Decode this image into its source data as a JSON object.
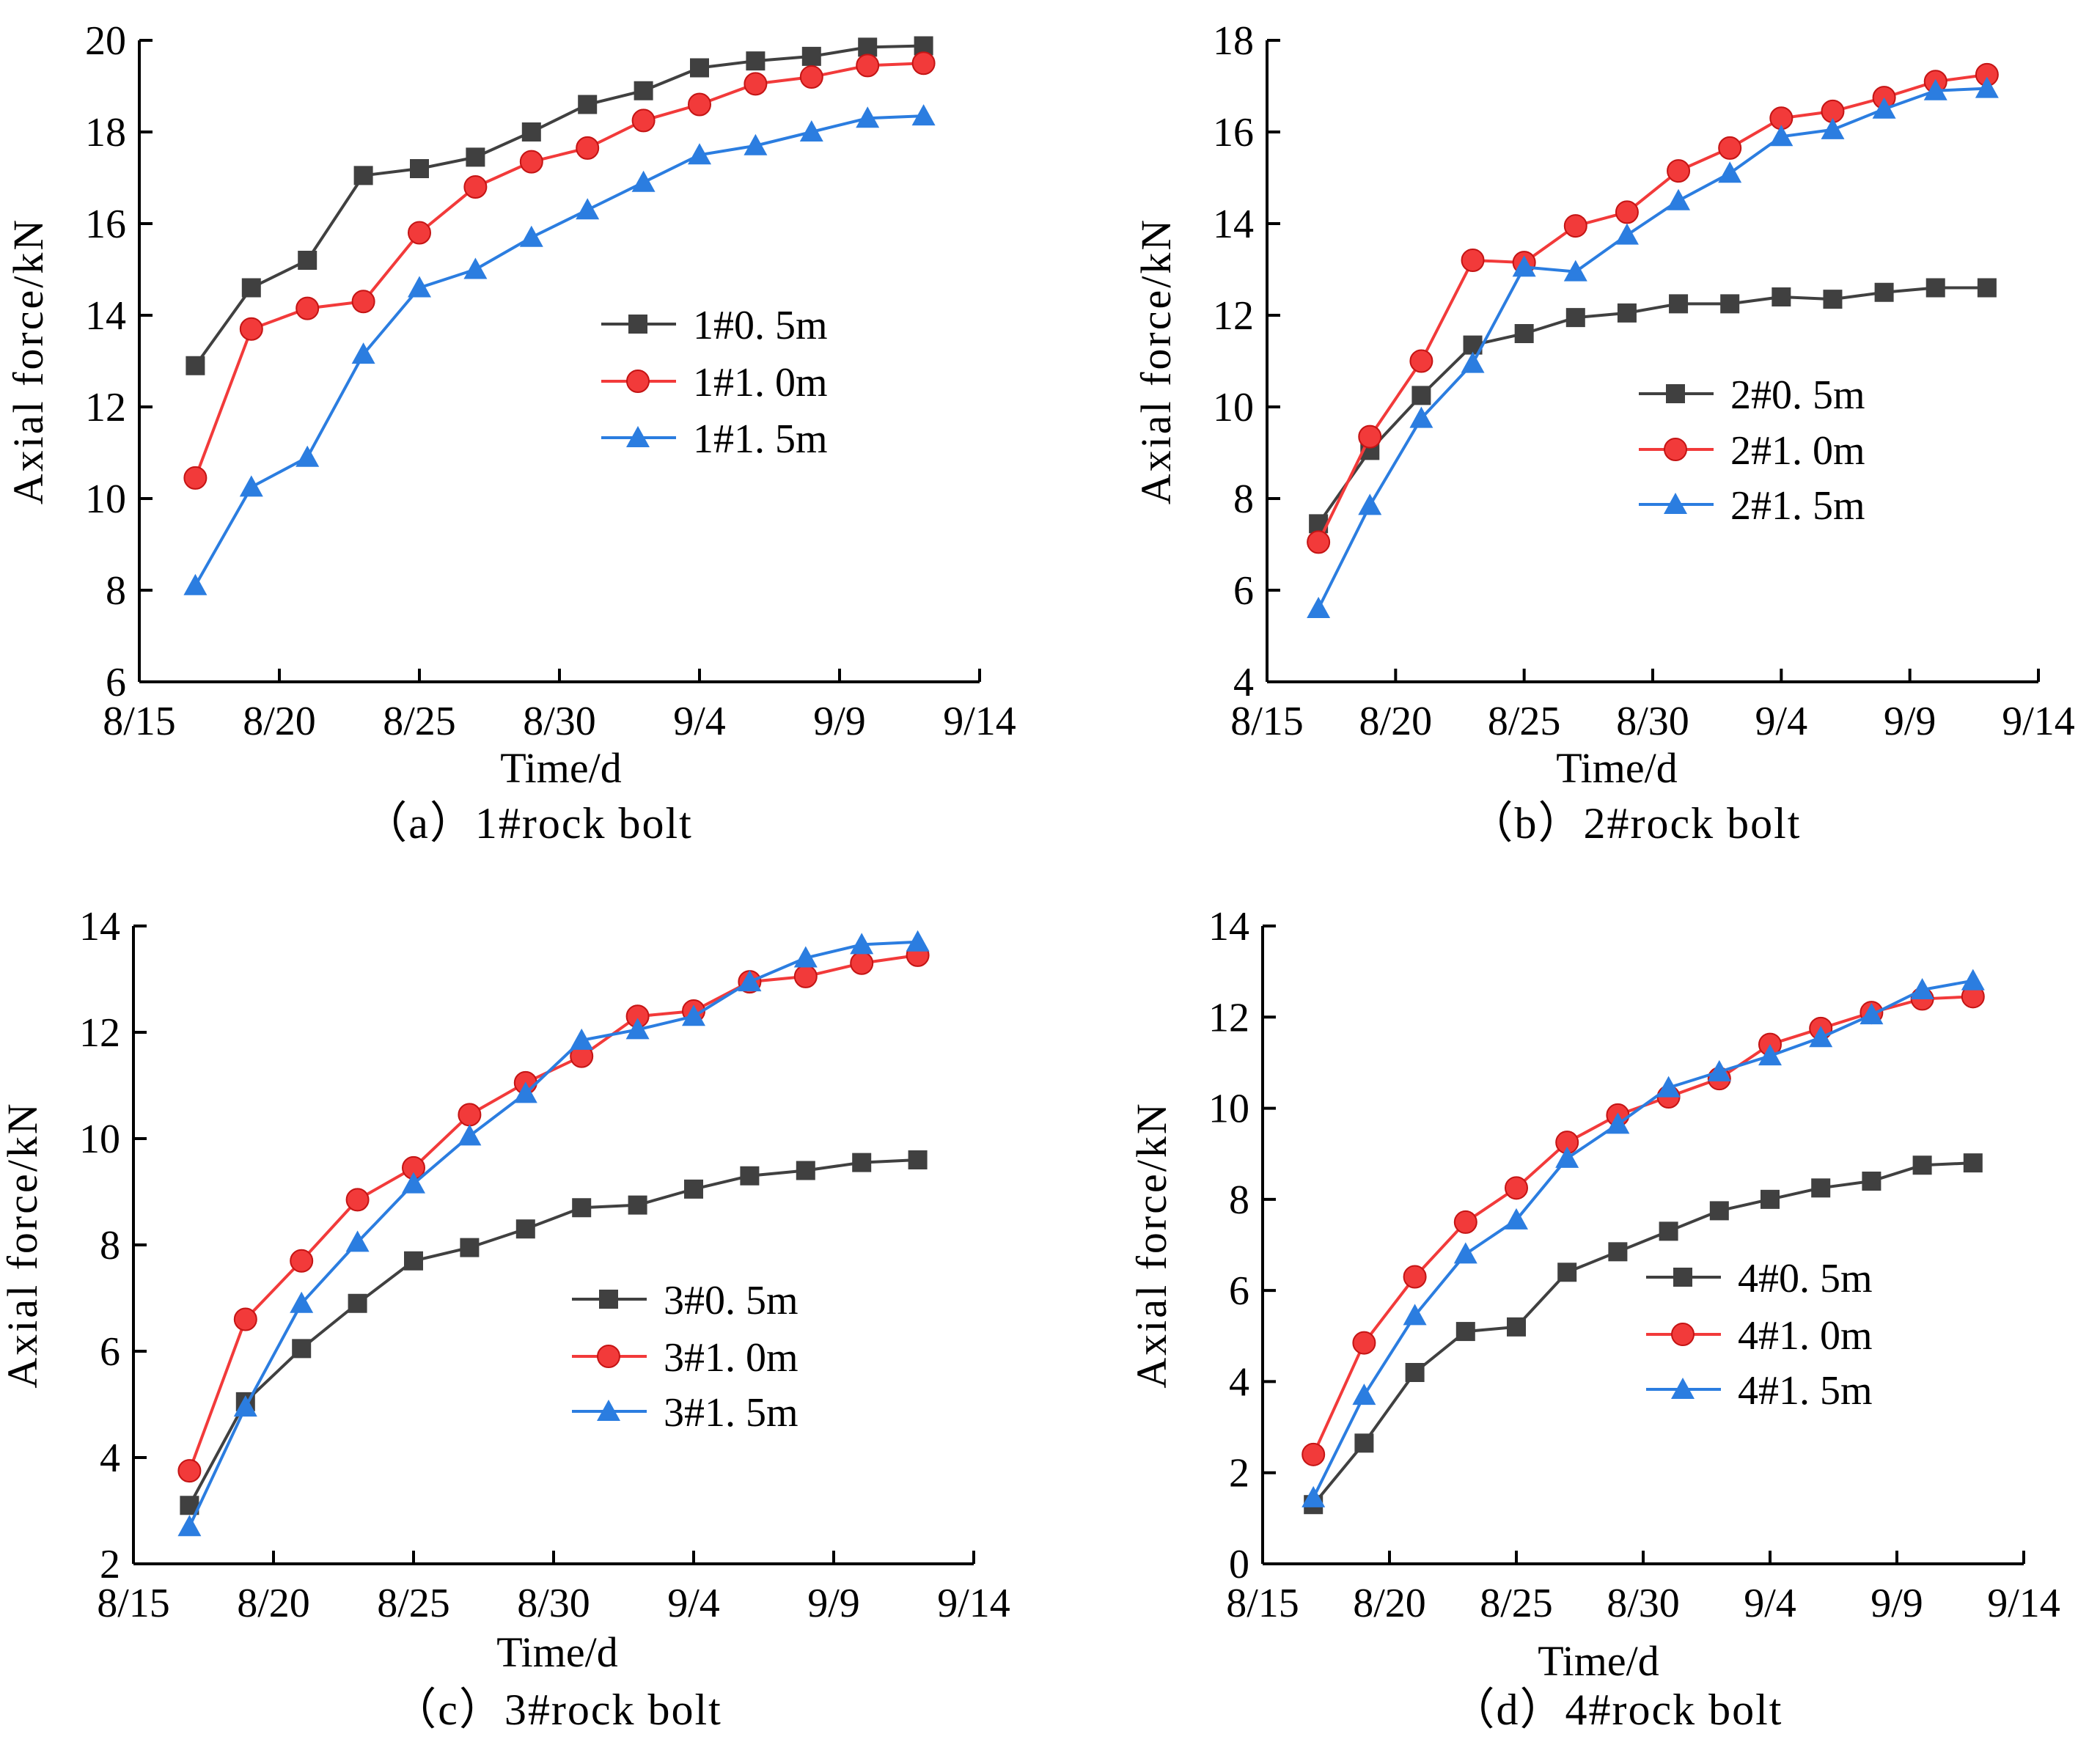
{
  "colors": {
    "series_0": "#404040",
    "series_1": "#f23a3a",
    "series_2": "#2b7de0",
    "axis": "#000000",
    "background": "#ffffff"
  },
  "markers": [
    "square",
    "circle",
    "triangle"
  ],
  "chart_data": [
    {
      "type": "line",
      "caption": "（a）1#rock bolt",
      "xlabel": "Time/d",
      "ylabel": "Axial force/kN",
      "x_ticks": [
        "8/15",
        "8/20",
        "8/25",
        "8/30",
        "9/4",
        "9/9",
        "9/14"
      ],
      "x_tick_days": [
        0,
        5,
        10,
        15,
        20,
        25,
        30
      ],
      "xlim": [
        0,
        30
      ],
      "ylim": [
        6,
        20
      ],
      "y_ticks": [
        6,
        8,
        10,
        12,
        14,
        16,
        18,
        20
      ],
      "x": [
        2,
        4,
        6,
        8,
        10,
        12,
        14,
        16,
        18,
        20,
        22,
        24,
        26,
        28
      ],
      "legend_position": "center-right",
      "series": [
        {
          "name": "1#0. 5m",
          "values": [
            12.9,
            14.6,
            15.2,
            17.05,
            17.2,
            17.45,
            18.0,
            18.6,
            18.9,
            19.4,
            19.55,
            19.65,
            19.85,
            19.88
          ]
        },
        {
          "name": "1#1. 0m",
          "values": [
            10.45,
            13.7,
            14.15,
            14.3,
            15.8,
            16.8,
            17.35,
            17.65,
            18.25,
            18.6,
            19.05,
            19.2,
            19.45,
            19.5
          ]
        },
        {
          "name": "1#1. 5m",
          "values": [
            8.1,
            10.25,
            10.9,
            13.15,
            14.6,
            15.0,
            15.7,
            16.3,
            16.9,
            17.5,
            17.7,
            18.0,
            18.3,
            18.35
          ]
        }
      ]
    },
    {
      "type": "line",
      "caption": "（b）2#rock bolt",
      "xlabel": "Time/d",
      "ylabel": "Axial force/kN",
      "x_ticks": [
        "8/15",
        "8/20",
        "8/25",
        "8/30",
        "9/4",
        "9/9",
        "9/14"
      ],
      "x_tick_days": [
        0,
        5,
        10,
        15,
        20,
        25,
        30
      ],
      "xlim": [
        0,
        30
      ],
      "ylim": [
        4,
        18
      ],
      "y_ticks": [
        4,
        6,
        8,
        10,
        12,
        14,
        16,
        18
      ],
      "x": [
        2,
        4,
        6,
        8,
        10,
        12,
        14,
        16,
        18,
        20,
        22,
        24,
        26,
        28
      ],
      "legend_position": "center-right",
      "series": [
        {
          "name": "2#0. 5m",
          "values": [
            7.45,
            9.05,
            10.25,
            11.35,
            11.6,
            11.95,
            12.05,
            12.25,
            12.25,
            12.4,
            12.35,
            12.5,
            12.6,
            12.6
          ]
        },
        {
          "name": "2#1. 0m",
          "values": [
            7.05,
            9.35,
            11.0,
            13.2,
            13.15,
            13.95,
            14.25,
            15.15,
            15.65,
            16.3,
            16.45,
            16.75,
            17.1,
            17.25
          ]
        },
        {
          "name": "2#1. 5m",
          "values": [
            5.6,
            7.85,
            9.75,
            10.95,
            13.05,
            12.95,
            13.75,
            14.5,
            15.1,
            15.9,
            16.05,
            16.5,
            16.9,
            16.95
          ]
        }
      ]
    },
    {
      "type": "line",
      "caption": "（c）3#rock bolt",
      "xlabel": "Time/d",
      "ylabel": "Axial force/kN",
      "x_ticks": [
        "8/15",
        "8/20",
        "8/25",
        "8/30",
        "9/4",
        "9/9",
        "9/14"
      ],
      "x_tick_days": [
        0,
        5,
        10,
        15,
        20,
        25,
        30
      ],
      "xlim": [
        0,
        30
      ],
      "ylim": [
        2,
        14
      ],
      "y_ticks": [
        2,
        4,
        6,
        8,
        10,
        12,
        14
      ],
      "x": [
        2,
        4,
        6,
        8,
        10,
        12,
        14,
        16,
        18,
        20,
        22,
        24,
        26,
        28
      ],
      "legend_position": "center-right",
      "series": [
        {
          "name": "3#0. 5m",
          "values": [
            3.1,
            5.05,
            6.05,
            6.9,
            7.7,
            7.95,
            8.3,
            8.7,
            8.75,
            9.05,
            9.3,
            9.4,
            9.55,
            9.6
          ]
        },
        {
          "name": "3#1. 0m",
          "values": [
            3.75,
            6.6,
            7.7,
            8.85,
            9.45,
            10.45,
            11.05,
            11.55,
            12.3,
            12.4,
            12.95,
            13.05,
            13.3,
            13.45
          ]
        },
        {
          "name": "3#1. 5m",
          "values": [
            2.7,
            4.95,
            6.9,
            8.05,
            9.15,
            10.05,
            10.85,
            11.85,
            12.05,
            12.3,
            12.95,
            13.4,
            13.65,
            13.7
          ]
        }
      ]
    },
    {
      "type": "line",
      "caption": "（d）4#rock bolt",
      "xlabel": "Time/d",
      "ylabel": "Axial force/kN",
      "x_ticks": [
        "8/15",
        "8/20",
        "8/25",
        "8/30",
        "9/4",
        "9/9",
        "9/14"
      ],
      "x_tick_days": [
        0,
        5,
        10,
        15,
        20,
        25,
        30
      ],
      "xlim": [
        0,
        30
      ],
      "ylim": [
        0,
        14
      ],
      "y_ticks": [
        0,
        2,
        4,
        6,
        8,
        10,
        12,
        14
      ],
      "x": [
        2,
        4,
        6,
        8,
        10,
        12,
        14,
        16,
        18,
        20,
        22,
        24,
        26,
        28
      ],
      "legend_position": "center-right",
      "series": [
        {
          "name": "4#0. 5m",
          "values": [
            1.3,
            2.65,
            4.2,
            5.1,
            5.2,
            6.4,
            6.85,
            7.3,
            7.75,
            8.0,
            8.25,
            8.4,
            8.75,
            8.8
          ]
        },
        {
          "name": "4#1. 0m",
          "values": [
            2.4,
            4.85,
            6.3,
            7.5,
            8.25,
            9.25,
            9.85,
            10.25,
            10.65,
            11.4,
            11.75,
            12.1,
            12.4,
            12.45
          ]
        },
        {
          "name": "4#1. 5m",
          "values": [
            1.45,
            3.7,
            5.45,
            6.8,
            7.55,
            8.9,
            9.65,
            10.45,
            10.8,
            11.15,
            11.55,
            12.05,
            12.6,
            12.8
          ]
        }
      ]
    }
  ]
}
